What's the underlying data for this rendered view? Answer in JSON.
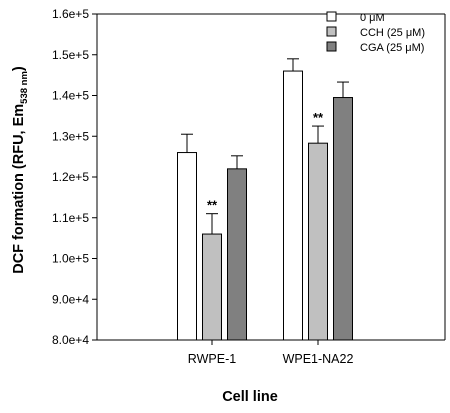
{
  "chart_data": {
    "type": "bar",
    "title": "",
    "xlabel": "Cell line",
    "ylabel": "DCF formation (RFU, Em",
    "ylabel_subscript": "538 nm",
    "ylabel_close": ")",
    "categories": [
      "RWPE-1",
      "WPE1-NA22"
    ],
    "ylim": [
      80000,
      160000
    ],
    "yticks": [
      80000,
      90000,
      100000,
      110000,
      120000,
      130000,
      140000,
      150000,
      160000
    ],
    "ytick_labels": [
      "8.0e+4",
      "9.0e+4",
      "1.0e+5",
      "1.1e+5",
      "1.2e+5",
      "1.3e+5",
      "1.4e+5",
      "1.5e+5",
      "1.6e+5"
    ],
    "legend_position": "top-right",
    "grid": false,
    "series": [
      {
        "name": "0 μM",
        "color": "#ffffff",
        "values": [
          126000,
          146000
        ],
        "errors": [
          4500,
          3000
        ],
        "annotations": [
          "",
          ""
        ]
      },
      {
        "name": "CCH (25 μM)",
        "color": "#c0c0c0",
        "values": [
          106000,
          128300
        ],
        "errors": [
          5000,
          4200
        ],
        "annotations": [
          "**",
          "**"
        ]
      },
      {
        "name": "CGA (25 μM)",
        "color": "#808080",
        "values": [
          122000,
          139500
        ],
        "errors": [
          3200,
          3800
        ],
        "annotations": [
          "",
          ""
        ]
      }
    ]
  }
}
